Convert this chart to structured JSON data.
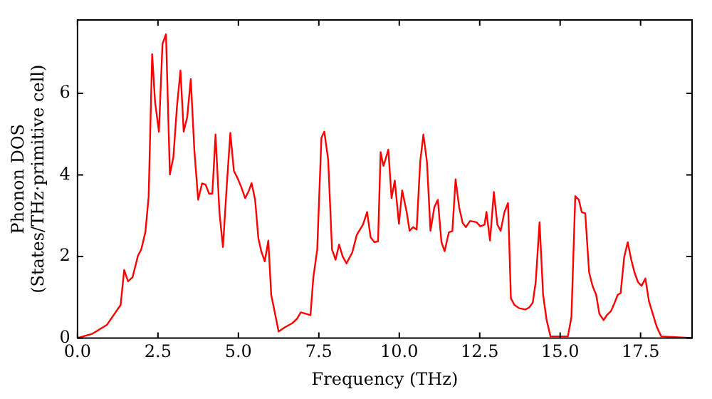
{
  "chart_data": {
    "type": "line",
    "xlabel": "Frequency (THz)",
    "ylabel": "Phonon DOS\n(States/THz·primitive cell)",
    "xlim": [
      0,
      19.1
    ],
    "ylim": [
      0,
      7.8
    ],
    "xticks": [
      {
        "value": 0,
        "label": "0.0"
      },
      {
        "value": 2.5,
        "label": "2.5"
      },
      {
        "value": 5,
        "label": "5.0"
      },
      {
        "value": 7.5,
        "label": "7.5"
      },
      {
        "value": 10,
        "label": "10.0"
      },
      {
        "value": 12.5,
        "label": "12.5"
      },
      {
        "value": 15,
        "label": "15.0"
      },
      {
        "value": 17.5,
        "label": "17.5"
      }
    ],
    "yticks": [
      0,
      2,
      4,
      6
    ],
    "grid": false,
    "legend": false,
    "marker": "none",
    "line_style": "solid",
    "series": [
      {
        "color": "#ff0000",
        "x": [
          0,
          0.45,
          0.91,
          1.34,
          1.45,
          1.57,
          1.71,
          1.88,
          1.98,
          2.11,
          2.21,
          2.32,
          2.41,
          2.53,
          2.64,
          2.75,
          2.87,
          2.98,
          3.09,
          3.2,
          3.3,
          3.41,
          3.52,
          3.63,
          3.75,
          3.87,
          3.98,
          4.09,
          4.19,
          4.29,
          4.41,
          4.52,
          4.64,
          4.75,
          4.86,
          4.98,
          5.09,
          5.21,
          5.33,
          5.41,
          5.52,
          5.62,
          5.71,
          5.82,
          5.93,
          6.02,
          6.13,
          6.25,
          6.44,
          6.67,
          6.82,
          6.94,
          7.08,
          7.24,
          7.33,
          7.45,
          7.58,
          7.67,
          7.79,
          7.91,
          8.02,
          8.13,
          8.24,
          8.36,
          8.54,
          8.68,
          8.87,
          9.0,
          9.11,
          9.23,
          9.34,
          9.42,
          9.51,
          9.66,
          9.76,
          9.86,
          9.99,
          10.09,
          10.23,
          10.32,
          10.43,
          10.54,
          10.65,
          10.75,
          10.86,
          10.97,
          11.09,
          11.2,
          11.31,
          11.41,
          11.54,
          11.65,
          11.75,
          11.86,
          11.97,
          12.07,
          12.2,
          12.4,
          12.52,
          12.65,
          12.71,
          12.82,
          12.94,
          13.05,
          13.15,
          13.27,
          13.38,
          13.47,
          13.58,
          13.73,
          13.92,
          14.04,
          14.15,
          14.24,
          14.36,
          14.47,
          14.58,
          14.7,
          15.24,
          15.35,
          15.47,
          15.58,
          15.67,
          15.78,
          15.9,
          16.01,
          16.12,
          16.22,
          16.35,
          16.45,
          16.58,
          16.68,
          16.79,
          16.88,
          16.99,
          17.1,
          17.21,
          17.31,
          17.42,
          17.53,
          17.65,
          17.76,
          17.88,
          18.0,
          18.14,
          19.1
        ],
        "values": [
          0,
          0.1,
          0.32,
          0.81,
          1.67,
          1.39,
          1.49,
          2.02,
          2.17,
          2.6,
          3.46,
          6.96,
          5.79,
          5.06,
          7.21,
          7.45,
          4.01,
          4.44,
          5.67,
          6.56,
          5.06,
          5.42,
          6.35,
          4.62,
          3.39,
          3.79,
          3.76,
          3.54,
          3.54,
          4.99,
          3.09,
          2.23,
          3.76,
          5.03,
          4.1,
          3.91,
          3.7,
          3.43,
          3.62,
          3.8,
          3.39,
          2.45,
          2.13,
          1.88,
          2.39,
          1.06,
          0.63,
          0.16,
          0.26,
          0.36,
          0.47,
          0.63,
          0.6,
          0.56,
          1.49,
          2.17,
          4.91,
          5.06,
          4.38,
          2.17,
          1.92,
          2.29,
          2.0,
          1.83,
          2.1,
          2.53,
          2.78,
          3.09,
          2.47,
          2.35,
          2.37,
          4.56,
          4.22,
          4.62,
          3.43,
          3.86,
          2.8,
          3.62,
          3.09,
          2.63,
          2.72,
          2.66,
          4.32,
          4.99,
          4.32,
          2.63,
          3.21,
          3.39,
          2.35,
          2.13,
          2.59,
          2.62,
          3.89,
          3.21,
          2.82,
          2.72,
          2.87,
          2.84,
          2.74,
          2.78,
          3.09,
          2.39,
          3.58,
          2.78,
          2.63,
          3.09,
          3.31,
          0.97,
          0.81,
          0.73,
          0.7,
          0.75,
          0.87,
          1.37,
          2.84,
          1.06,
          0.44,
          0.04,
          0.04,
          0.51,
          3.48,
          3.39,
          3.09,
          3.06,
          1.61,
          1.27,
          1.06,
          0.59,
          0.44,
          0.56,
          0.66,
          0.84,
          1.06,
          1.1,
          1.98,
          2.35,
          1.92,
          1.61,
          1.37,
          1.28,
          1.46,
          0.9,
          0.59,
          0.28,
          0.04,
          0
        ]
      }
    ]
  }
}
